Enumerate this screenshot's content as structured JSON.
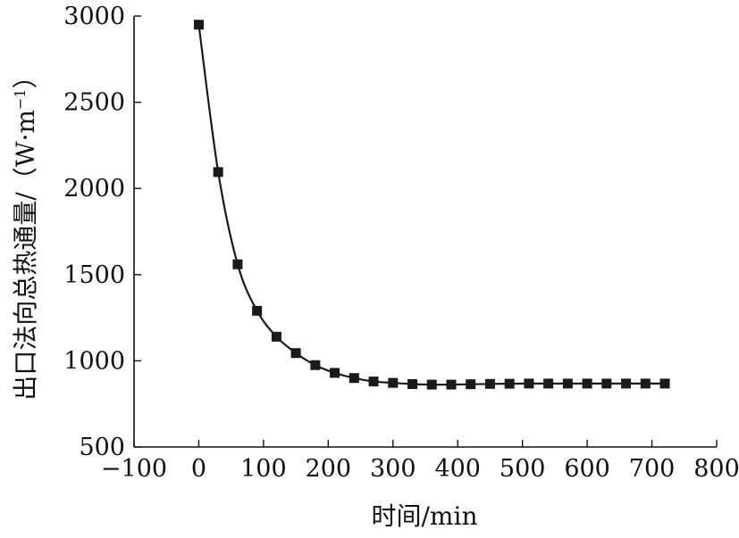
{
  "chart_data": {
    "type": "line",
    "xlabel": "时间/min",
    "ylabel": "出口法向总热通量/（W·m",
    "ylabel_superscript": "−1",
    "ylabel_close": "）",
    "xlim": [
      -100,
      800
    ],
    "ylim": [
      500,
      3000
    ],
    "xticks": [
      -100,
      0,
      100,
      200,
      300,
      400,
      500,
      600,
      700,
      800
    ],
    "yticks": [
      500,
      1000,
      1500,
      2000,
      2500,
      3000
    ],
    "xtick_labels": [
      "−100",
      "0",
      "100",
      "200",
      "300",
      "400",
      "500",
      "600",
      "700",
      "800"
    ],
    "ytick_labels": [
      "500",
      "1000",
      "1500",
      "2000",
      "2500",
      "3000"
    ],
    "series": [
      {
        "marker": "square",
        "color": "#1a1a1a",
        "x": [
          0,
          30,
          60,
          90,
          120,
          150,
          180,
          210,
          240,
          270,
          300,
          330,
          360,
          390,
          420,
          450,
          480,
          510,
          540,
          570,
          600,
          630,
          660,
          690,
          720
        ],
        "y": [
          2950,
          2095,
          1560,
          1290,
          1140,
          1045,
          975,
          930,
          900,
          880,
          872,
          865,
          862,
          862,
          864,
          866,
          867,
          868,
          868,
          868,
          868,
          868,
          868,
          868,
          868
        ]
      }
    ],
    "grid": false,
    "legend": "none"
  }
}
